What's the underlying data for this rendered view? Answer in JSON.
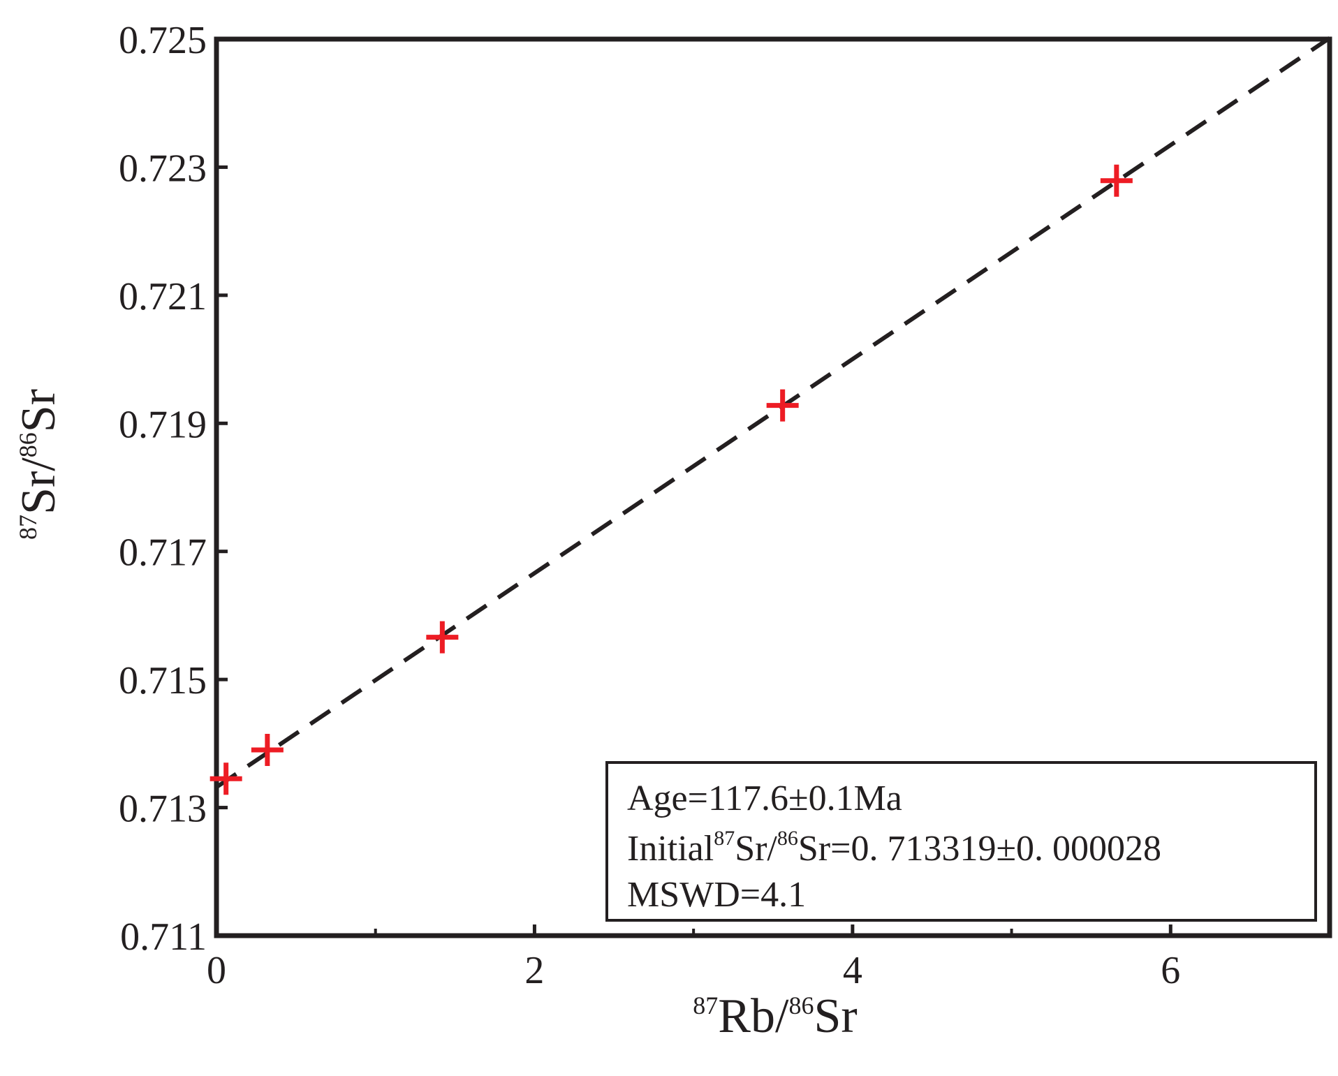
{
  "chart_data": {
    "type": "scatter",
    "xlabel": {
      "sup1": "87",
      "main1": "Rb/",
      "sup2": "86",
      "main2": "Sr"
    },
    "ylabel": {
      "sup1": "87",
      "main1": "Sr/",
      "sup2": "86",
      "main2": "Sr"
    },
    "xlim": [
      0,
      7
    ],
    "ylim": [
      0.711,
      0.725
    ],
    "x_ticks": [
      0,
      2,
      4,
      6
    ],
    "x_minor_ticks": [
      1,
      3,
      5
    ],
    "x_tick_labels": [
      "0",
      "2",
      "4",
      "6"
    ],
    "y_ticks": [
      0.711,
      0.713,
      0.715,
      0.717,
      0.719,
      0.721,
      0.723,
      0.725
    ],
    "y_tick_labels": [
      "0.711",
      "0.713",
      "0.715",
      "0.717",
      "0.719",
      "0.721",
      "0.723",
      "0.725"
    ],
    "grid": false,
    "series": [
      {
        "marker": "plus",
        "color": "#ed1c24",
        "points": [
          {
            "x": 0.06,
            "y": 0.71345
          },
          {
            "x": 0.32,
            "y": 0.7139
          },
          {
            "x": 1.42,
            "y": 0.71566
          },
          {
            "x": 3.56,
            "y": 0.71928
          },
          {
            "x": 5.66,
            "y": 0.72279
          }
        ]
      }
    ],
    "regression_line": {
      "style": "dashed",
      "color": "#231f20",
      "intercept": 0.713319,
      "slope": 0.001671
    },
    "annotation_box": {
      "position": "bottom-right",
      "age": "Age=117.6±0.1Ma",
      "initial": {
        "prefix": "Initial",
        "sup1": "87",
        "mid": "Sr/",
        "sup2": "86",
        "suffix": "Sr=0. 713319±0. 000028"
      },
      "mswd": "MSWD=4.1"
    }
  }
}
